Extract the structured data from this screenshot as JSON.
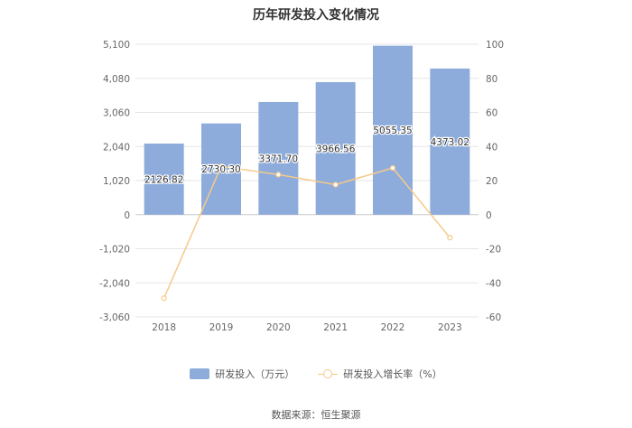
{
  "chart_data": {
    "type": "bar",
    "title": "历年研发投入变化情况",
    "categories": [
      "2018",
      "2019",
      "2020",
      "2021",
      "2022",
      "2023"
    ],
    "series": [
      {
        "name": "研发投入（万元）",
        "type": "bar",
        "axis": "left",
        "color": "#8dacdb",
        "values": [
          2126.82,
          2730.3,
          3371.7,
          3966.56,
          5055.35,
          4373.02
        ],
        "labels": [
          "2126.82",
          "2730.30",
          "3371.70",
          "3966.56",
          "5055.35",
          "4373.02"
        ]
      },
      {
        "name": "研发投入增长率（%）",
        "type": "line",
        "axis": "right",
        "color": "#f6c98a",
        "values": [
          -49,
          28.4,
          23.5,
          17.6,
          27.4,
          -13.5
        ]
      }
    ],
    "y_left": {
      "ylim": [
        -3060,
        5100
      ],
      "ticks": [
        -3060,
        -2040,
        -1020,
        0,
        1020,
        2040,
        3060,
        4080,
        5100
      ],
      "tick_labels": [
        "-3,060",
        "-2,040",
        "-1,020",
        "0",
        "1,020",
        "2,040",
        "3,060",
        "4,080",
        "5,100"
      ]
    },
    "y_right": {
      "ylim": [
        -60,
        100
      ],
      "ticks": [
        -60,
        -40,
        -20,
        0,
        20,
        40,
        60,
        80,
        100
      ],
      "tick_labels": [
        "-60",
        "-40",
        "-20",
        "0",
        "20",
        "40",
        "60",
        "80",
        "100"
      ]
    },
    "grid": true,
    "legend_position": "bottom"
  },
  "footer": {
    "source": "数据来源：恒生聚源"
  }
}
